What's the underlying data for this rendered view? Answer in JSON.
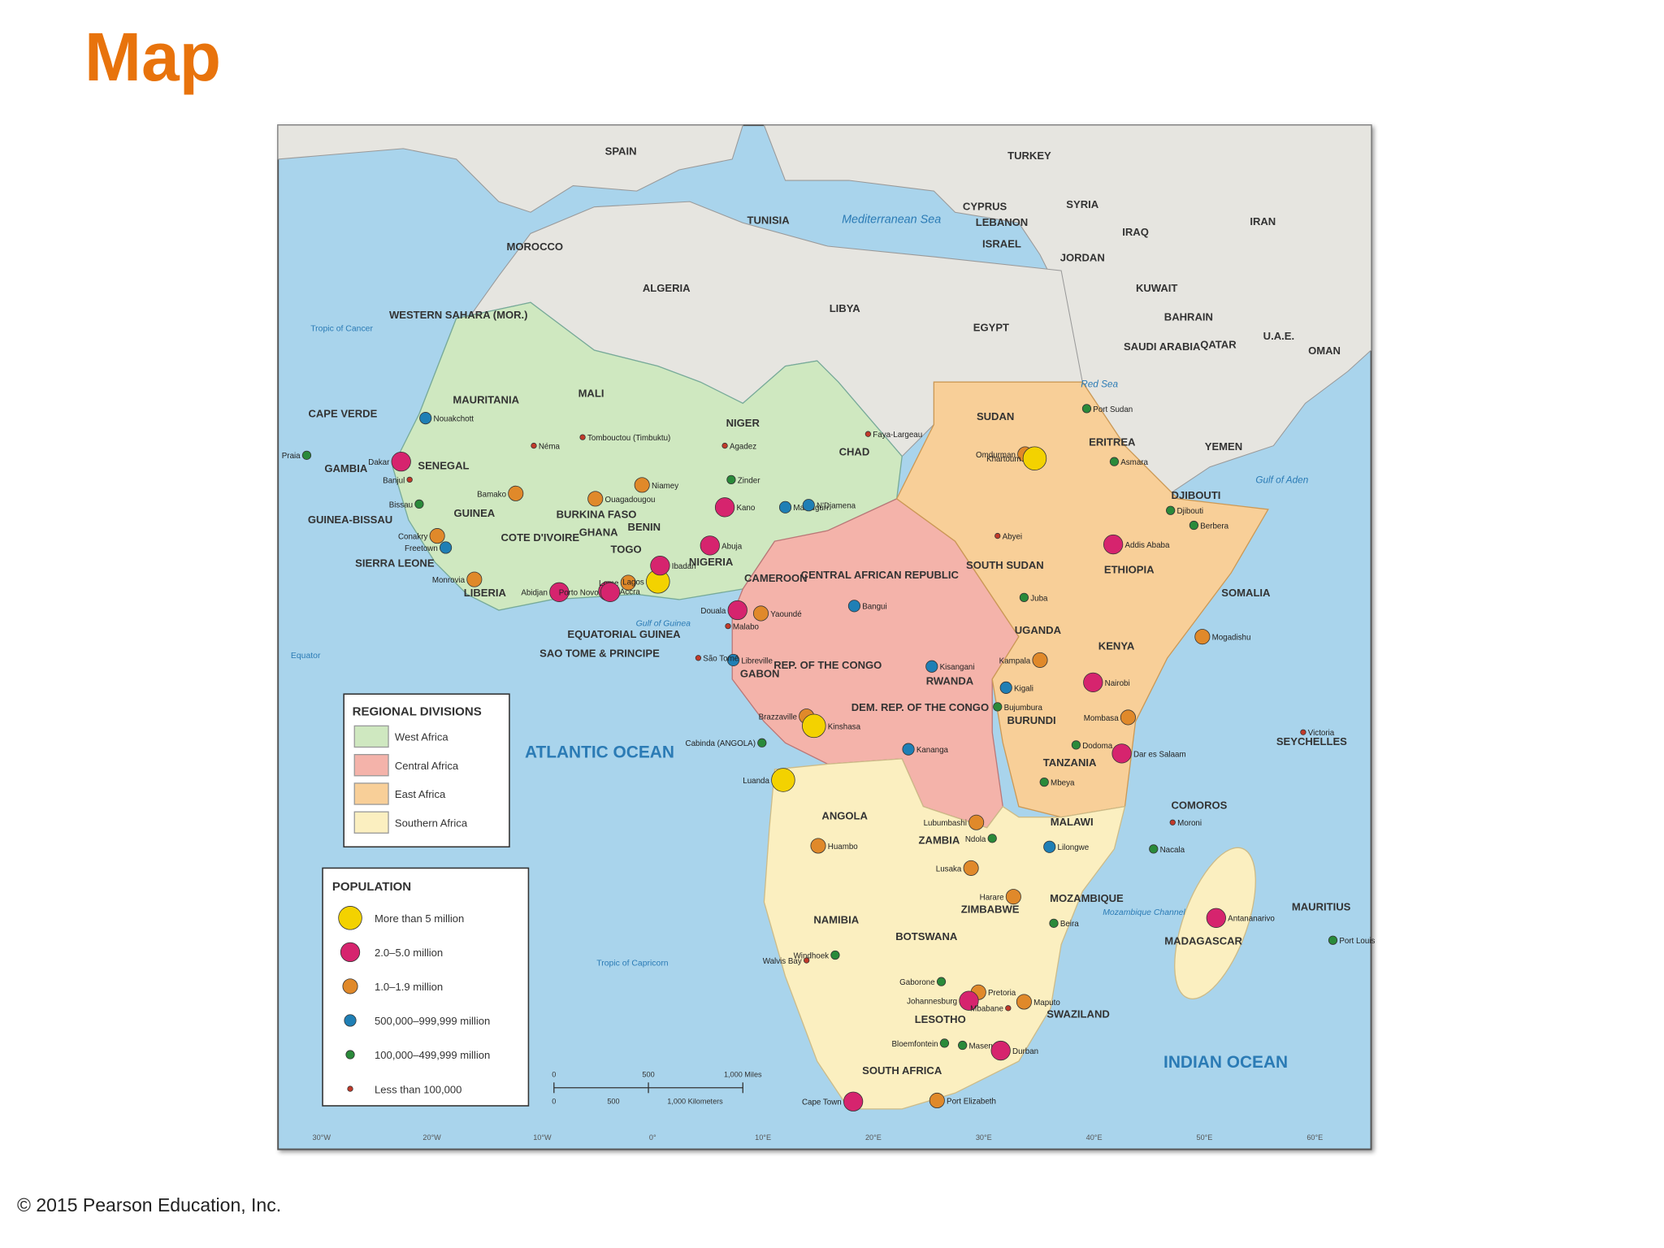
{
  "title": "Map",
  "copyright": "© 2015 Pearson Education, Inc.",
  "regional_legend": {
    "title": "REGIONAL DIVISIONS",
    "items": [
      {
        "label": "West Africa",
        "color": "#cfe8c0"
      },
      {
        "label": "Central Africa",
        "color": "#f4b3aa"
      },
      {
        "label": "East Africa",
        "color": "#f8cf98"
      },
      {
        "label": "Southern Africa",
        "color": "#fbefc0"
      }
    ]
  },
  "population_legend": {
    "title": "POPULATION",
    "items": [
      {
        "label": "More than 5 million",
        "color": "#f3d200"
      },
      {
        "label": "2.0–5.0 million",
        "color": "#d6246e"
      },
      {
        "label": "1.0–1.9 million",
        "color": "#e0892a"
      },
      {
        "label": "500,000–999,999 million",
        "color": "#1f7fb5"
      },
      {
        "label": "100,000–499,999 million",
        "color": "#2a8a3a"
      },
      {
        "label": "Less than 100,000",
        "color": "#c23a2a"
      }
    ]
  },
  "countries": [
    "SPAIN",
    "TURKEY",
    "TUNISIA",
    "CYPRUS",
    "SYRIA",
    "LEBANON",
    "ISRAEL",
    "IRAQ",
    "IRAN",
    "JORDAN",
    "MOROCCO",
    "ALGERIA",
    "LIBYA",
    "EGYPT",
    "KUWAIT",
    "BAHRAIN",
    "QATAR",
    "U.A.E.",
    "OMAN",
    "SAUDI ARABIA",
    "WESTERN SAHARA (MOR.)",
    "MAURITANIA",
    "MALI",
    "NIGER",
    "CHAD",
    "SUDAN",
    "ERITREA",
    "YEMEN",
    "DJIBOUTI",
    "SENEGAL",
    "GAMBIA",
    "CAPE VERDE",
    "GUINEA-BISSAU",
    "GUINEA",
    "SIERRA LEONE",
    "LIBERIA",
    "COTE D'IVOIRE",
    "BURKINA FASO",
    "GHANA",
    "TOGO",
    "BENIN",
    "NIGERIA",
    "CAMEROON",
    "CENTRAL AFRICAN REPUBLIC",
    "SOUTH SUDAN",
    "ETHIOPIA",
    "SOMALIA",
    "EQUATORIAL GUINEA",
    "SAO TOME & PRINCIPE",
    "GABON",
    "REP. OF THE CONGO",
    "DEM. REP. OF THE CONGO",
    "RWANDA",
    "UGANDA",
    "KENYA",
    "BURUNDI",
    "TANZANIA",
    "ANGOLA",
    "ZAMBIA",
    "MALAWI",
    "MOZAMBIQUE",
    "ZIMBABWE",
    "NAMIBIA",
    "BOTSWANA",
    "MADAGASCAR",
    "COMOROS",
    "SEYCHELLES",
    "MAURITIUS",
    "LESOTHO",
    "SWAZILAND",
    "SOUTH AFRICA"
  ],
  "water": [
    "Mediterranean Sea",
    "Red Sea",
    "ATLANTIC OCEAN",
    "INDIAN OCEAN",
    "Gulf of Guinea",
    "Gulf of Aden",
    "Mozambique Channel",
    "Tropic of Cancer",
    "Tropic of Capricorn",
    "Equator"
  ],
  "cities": [
    {
      "name": "Nouakchott",
      "class": 3
    },
    {
      "name": "Dakar",
      "class": 1
    },
    {
      "name": "Banjul",
      "class": 5
    },
    {
      "name": "Bissau",
      "class": 4
    },
    {
      "name": "Conakry",
      "class": 2
    },
    {
      "name": "Freetown",
      "class": 3
    },
    {
      "name": "Monrovia",
      "class": 2
    },
    {
      "name": "Abidjan",
      "class": 1
    },
    {
      "name": "Accra",
      "class": 1
    },
    {
      "name": "Lome",
      "class": 2
    },
    {
      "name": "Porto Novo",
      "class": 1
    },
    {
      "name": "Lagos",
      "class": 0
    },
    {
      "name": "Ibadan",
      "class": 1
    },
    {
      "name": "Abuja",
      "class": 1
    },
    {
      "name": "Kano",
      "class": 1
    },
    {
      "name": "Niamey",
      "class": 2
    },
    {
      "name": "Bamako",
      "class": 2
    },
    {
      "name": "Ouagadougou",
      "class": 2
    },
    {
      "name": "Néma",
      "class": 5
    },
    {
      "name": "Tombouctou (Timbuktu)",
      "class": 5
    },
    {
      "name": "Agadez",
      "class": 5
    },
    {
      "name": "Zinder",
      "class": 4
    },
    {
      "name": "Maiduguri",
      "class": 3
    },
    {
      "name": "N'Djamena",
      "class": 3
    },
    {
      "name": "Faya-Largeau",
      "class": 5
    },
    {
      "name": "Omdurman",
      "class": 2
    },
    {
      "name": "Khartoum",
      "class": 0
    },
    {
      "name": "Port Sudan",
      "class": 4
    },
    {
      "name": "Asmara",
      "class": 4
    },
    {
      "name": "Addis Ababa",
      "class": 1
    },
    {
      "name": "Djibouti",
      "class": 4
    },
    {
      "name": "Berbera",
      "class": 4
    },
    {
      "name": "Juba",
      "class": 4
    },
    {
      "name": "Abyei",
      "class": 5
    },
    {
      "name": "Mogadishu",
      "class": 2
    },
    {
      "name": "Nairobi",
      "class": 1
    },
    {
      "name": "Mombasa",
      "class": 2
    },
    {
      "name": "Kampala",
      "class": 2
    },
    {
      "name": "Kigali",
      "class": 3
    },
    {
      "name": "Bujumbura",
      "class": 4
    },
    {
      "name": "Dodoma",
      "class": 4
    },
    {
      "name": "Dar es Salaam",
      "class": 1
    },
    {
      "name": "Mbeya",
      "class": 4
    },
    {
      "name": "Bangui",
      "class": 3
    },
    {
      "name": "Douala",
      "class": 1
    },
    {
      "name": "Yaoundé",
      "class": 2
    },
    {
      "name": "Malabo",
      "class": 5
    },
    {
      "name": "Libreville",
      "class": 3
    },
    {
      "name": "São Tomé",
      "class": 5
    },
    {
      "name": "Brazzaville",
      "class": 2
    },
    {
      "name": "Kinshasa",
      "class": 0
    },
    {
      "name": "Cabinda (ANGOLA)",
      "class": 4
    },
    {
      "name": "Luanda",
      "class": 0
    },
    {
      "name": "Huambo",
      "class": 2
    },
    {
      "name": "Kisangani",
      "class": 3
    },
    {
      "name": "Kananga",
      "class": 3
    },
    {
      "name": "Lubumbashi",
      "class": 2
    },
    {
      "name": "Ndola",
      "class": 4
    },
    {
      "name": "Lusaka",
      "class": 2
    },
    {
      "name": "Lilongwe",
      "class": 3
    },
    {
      "name": "Nacala",
      "class": 4
    },
    {
      "name": "Harare",
      "class": 2
    },
    {
      "name": "Beira",
      "class": 4
    },
    {
      "name": "Windhoek",
      "class": 4
    },
    {
      "name": "Walvis Bay",
      "class": 5
    },
    {
      "name": "Gaborone",
      "class": 4
    },
    {
      "name": "Pretoria",
      "class": 2
    },
    {
      "name": "Johannesburg",
      "class": 1
    },
    {
      "name": "Maputo",
      "class": 2
    },
    {
      "name": "Mbabane",
      "class": 5
    },
    {
      "name": "Bloemfontein",
      "class": 4
    },
    {
      "name": "Maseru",
      "class": 4
    },
    {
      "name": "Durban",
      "class": 1
    },
    {
      "name": "Port Elizabeth",
      "class": 2
    },
    {
      "name": "Cape Town",
      "class": 1
    },
    {
      "name": "Antananarivo",
      "class": 1
    },
    {
      "name": "Moroni",
      "class": 5
    },
    {
      "name": "Victoria",
      "class": 5
    },
    {
      "name": "Port Louis",
      "class": 4
    },
    {
      "name": "Praia",
      "class": 4
    }
  ],
  "scale": [
    "0",
    "500",
    "1,000 Miles",
    "0",
    "500",
    "1,000 Kilometers"
  ],
  "longitudes": [
    "30°W",
    "20°W",
    "10°W",
    "0°",
    "10°E",
    "20°E",
    "30°E",
    "40°E",
    "50°E",
    "60°E"
  ]
}
